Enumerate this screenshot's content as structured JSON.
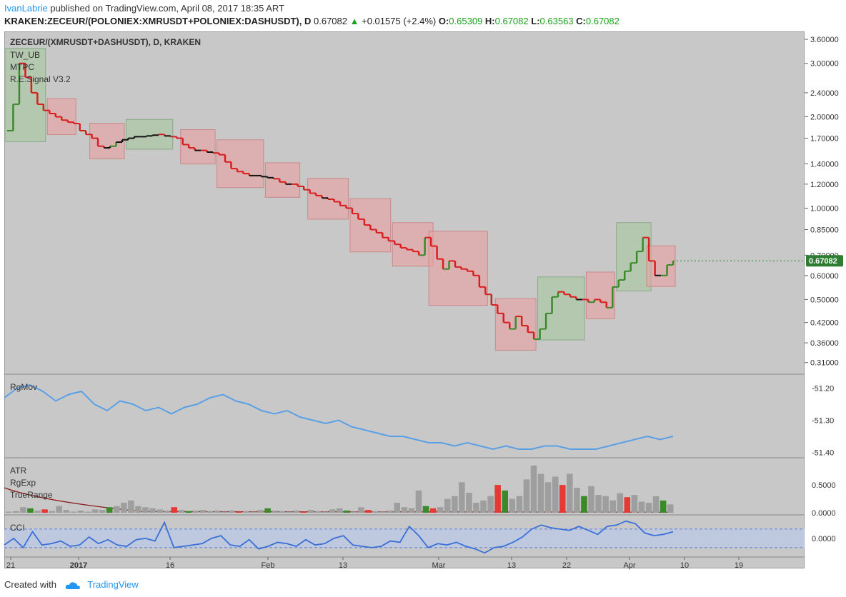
{
  "header": {
    "author": "IvanLabrie",
    "published_text": "published on TradingView.com, April 08, 2017 18:35 ART",
    "symbol": "KRAKEN:ZECEUR/(POLONIEX:XMRUSDT+POLONIEX:DASHUSDT), D",
    "last": "0.67082",
    "change": "+0.01575 (+2.4%)",
    "open_label": "O:",
    "open": "0.65309",
    "high_label": "H:",
    "high": "0.67082",
    "low_label": "L:",
    "low": "0.63563",
    "close_label": "C:",
    "close": "0.67082"
  },
  "chart_overlay": {
    "title": "ZECEUR/(XMRUSDT+DASHUSDT), D, KRAKEN",
    "indicators": [
      "TW_UB",
      "MTPC",
      "R.E.Signal V3.2"
    ]
  },
  "price_axis": {
    "ticks": [
      "3.60000",
      "3.00000",
      "2.40000",
      "2.00000",
      "1.70000",
      "1.40000",
      "1.20000",
      "1.00000",
      "0.85000",
      "0.70000",
      "0.60000",
      "0.50000",
      "0.42000",
      "0.36000",
      "0.31000"
    ],
    "last_badge": "0.67082"
  },
  "rgmov_panel": {
    "label": "RgMov",
    "ticks": [
      "-51.20",
      "-51.30",
      "-51.40"
    ]
  },
  "atr_panel": {
    "labels": [
      "ATR",
      "RgExp",
      "TrueRange"
    ],
    "ticks": [
      "0.5000",
      "0.0000"
    ]
  },
  "cci_panel": {
    "label": "CCI",
    "ticks": [
      "0.0000"
    ]
  },
  "time_axis": {
    "labels": [
      "21",
      "2017",
      "16",
      "Feb",
      "13",
      "Mar",
      "13",
      "22",
      "Apr",
      "10",
      "19"
    ]
  },
  "footer": {
    "created_with": "Created with",
    "brand": "TradingView"
  },
  "colors": {
    "bull": "#3a8a2a",
    "bear": "#d81e1e",
    "neutral": "#111111",
    "rgmov": "#5aa0e6",
    "cci": "#3a6fd8",
    "badge": "#2e7d32",
    "box_red": "#e9a0a0",
    "box_green": "#a7c8a0"
  },
  "chart_data": {
    "type": "line",
    "title": "ZECEUR/(XMRUSDT+DASHUSDT), D, KRAKEN",
    "xlabel": "",
    "ylabel": "",
    "scale": "log",
    "x_range": [
      "2016-12-19",
      "2017-04-08"
    ],
    "ylim": [
      0.29,
      3.7
    ],
    "series": [
      {
        "values": [
          1.8,
          2.2,
          3.0,
          2.7,
          2.4,
          2.2,
          2.1,
          2.05,
          2.0,
          1.95,
          1.92,
          1.9,
          1.8,
          1.75,
          1.7,
          1.6,
          1.58,
          1.6,
          1.65,
          1.68,
          1.7,
          1.72,
          1.72,
          1.73,
          1.74,
          1.75,
          1.73,
          1.72,
          1.7,
          1.62,
          1.58,
          1.55,
          1.55,
          1.53,
          1.52,
          1.5,
          1.42,
          1.35,
          1.32,
          1.3,
          1.28,
          1.28,
          1.27,
          1.26,
          1.25,
          1.22,
          1.2,
          1.2,
          1.18,
          1.15,
          1.12,
          1.1,
          1.08,
          1.07,
          1.05,
          1.02,
          1.0,
          0.96,
          0.92,
          0.88,
          0.85,
          0.83,
          0.8,
          0.78,
          0.76,
          0.74,
          0.73,
          0.72,
          0.7,
          0.8,
          0.75,
          0.68,
          0.63,
          0.67,
          0.64,
          0.63,
          0.62,
          0.6,
          0.55,
          0.52,
          0.48,
          0.45,
          0.42,
          0.4,
          0.44,
          0.41,
          0.39,
          0.37,
          0.4,
          0.45,
          0.51,
          0.53,
          0.52,
          0.51,
          0.5,
          0.5,
          0.49,
          0.5,
          0.49,
          0.47,
          0.55,
          0.58,
          0.62,
          0.66,
          0.72,
          0.8,
          0.67,
          0.6,
          0.6,
          0.65,
          0.67082
        ]
      }
    ],
    "volume": [
      0.02,
      0.03,
      0.1,
      0.08,
      0.04,
      0.06,
      0.03,
      0.12,
      0.05,
      0.02,
      0.04,
      0.02,
      0.06,
      0.05,
      0.1,
      0.12,
      0.18,
      0.22,
      0.12,
      0.1,
      0.08,
      0.06,
      0.04,
      0.1,
      0.05,
      0.03,
      0.04,
      0.05,
      0.03,
      0.04,
      0.02,
      0.04,
      0.02,
      0.03,
      0.02,
      0.05,
      0.08,
      0.04,
      0.03,
      0.02,
      0.04,
      0.02,
      0.05,
      0.03,
      0.02,
      0.06,
      0.08,
      0.04,
      0.02,
      0.1,
      0.05,
      0.03,
      0.02,
      0.04,
      0.18,
      0.1,
      0.08,
      0.4,
      0.12,
      0.08,
      0.1,
      0.25,
      0.3,
      0.55,
      0.36,
      0.18,
      0.22,
      0.3,
      0.5,
      0.4,
      0.25,
      0.3,
      0.6,
      0.85,
      0.7,
      0.55,
      0.65,
      0.5,
      0.7,
      0.45,
      0.3,
      0.48,
      0.32,
      0.3,
      0.22,
      0.35,
      0.28,
      0.32,
      0.2,
      0.18,
      0.3,
      0.22,
      0.15
    ],
    "rgmov": [
      -51.23,
      -51.2,
      -51.19,
      -51.21,
      -51.24,
      -51.22,
      -51.21,
      -51.25,
      -51.27,
      -51.24,
      -51.25,
      -51.27,
      -51.26,
      -51.28,
      -51.26,
      -51.25,
      -51.23,
      -51.22,
      -51.24,
      -51.25,
      -51.27,
      -51.28,
      -51.27,
      -51.29,
      -51.3,
      -51.31,
      -51.3,
      -51.32,
      -51.33,
      -51.34,
      -51.35,
      -51.35,
      -51.36,
      -51.37,
      -51.37,
      -51.38,
      -51.37,
      -51.38,
      -51.39,
      -51.38,
      -51.39,
      -51.39,
      -51.38,
      -51.38,
      -51.39,
      -51.39,
      -51.39,
      -51.38,
      -51.37,
      -51.36,
      -51.35,
      -51.36,
      -51.35
    ],
    "cci": [
      -0.2,
      0.3,
      -0.4,
      0.8,
      -0.2,
      -0.1,
      0.1,
      -0.3,
      -0.2,
      0.4,
      -0.1,
      0.2,
      -0.2,
      -0.3,
      0.2,
      0.3,
      0.1,
      1.5,
      -0.4,
      -0.3,
      -0.2,
      -0.1,
      0.3,
      0.5,
      -0.2,
      -0.3,
      0.2,
      -0.5,
      -0.3,
      0.0,
      -0.1,
      -0.3,
      0.2,
      -0.2,
      -0.1,
      0.3,
      0.5,
      -0.2,
      -0.3,
      -0.4,
      -0.3,
      0.1,
      0.0,
      1.2,
      0.5,
      -0.4,
      -0.1,
      -0.2,
      0.0,
      -0.3,
      -0.5,
      -0.8,
      -0.4,
      -0.3,
      0.0,
      0.4,
      1.0,
      1.3,
      1.1,
      1.0,
      0.9,
      1.2,
      0.9,
      0.6,
      1.2,
      1.3,
      1.6,
      1.4,
      0.7,
      0.5,
      0.6,
      0.8
    ]
  }
}
